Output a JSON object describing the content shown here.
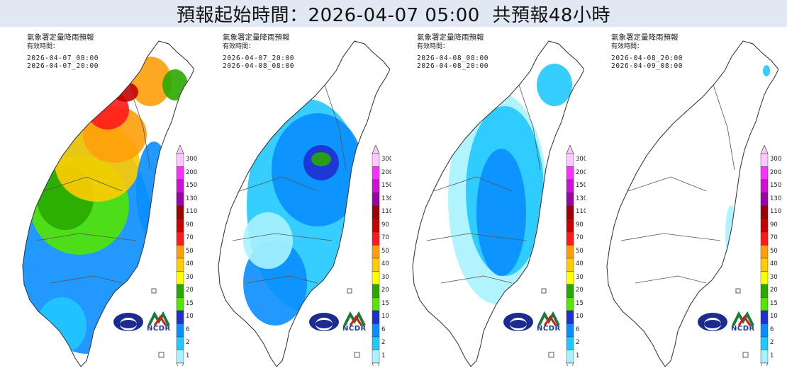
{
  "title": "預報起始時間：2026-04-07 05:00  共預報48小時",
  "panels": [
    {
      "title": "氣象署定量降雨預報",
      "subtitle": "有效時間：",
      "start": "2026-04-07_08:00",
      "end": "2026-04-07_20:00",
      "intensity": 4
    },
    {
      "title": "氣象署定量降雨預報",
      "subtitle": "有效時間：",
      "start": "2026-04-07_20:00",
      "end": "2026-04-08_08:00",
      "intensity": 3
    },
    {
      "title": "氣象署定量降雨預報",
      "subtitle": "有效時間：",
      "start": "2026-04-08_08:00",
      "end": "2026-04-08_20:00",
      "intensity": 2
    },
    {
      "title": "氣象署定量降雨預報",
      "subtitle": "有效時間：",
      "start": "2026-04-08_20:00",
      "end": "2026-04-09_08:00",
      "intensity": 1
    }
  ],
  "legend": {
    "levels": [
      "300",
      "200",
      "150",
      "130",
      "110",
      "90",
      "70",
      "50",
      "40",
      "30",
      "20",
      "15",
      "10",
      "6",
      "2",
      "1"
    ],
    "colors": [
      "#ffc8ff",
      "#ff30ff",
      "#d010d8",
      "#9c00a8",
      "#9a0000",
      "#c80000",
      "#ff1a1a",
      "#ff9e0a",
      "#ffcc00",
      "#ffff00",
      "#2aa800",
      "#52e600",
      "#1f2fd0",
      "#0a8eff",
      "#20c8ff",
      "#a8f2ff"
    ]
  },
  "logos": {
    "ncdr": "NCDR"
  }
}
